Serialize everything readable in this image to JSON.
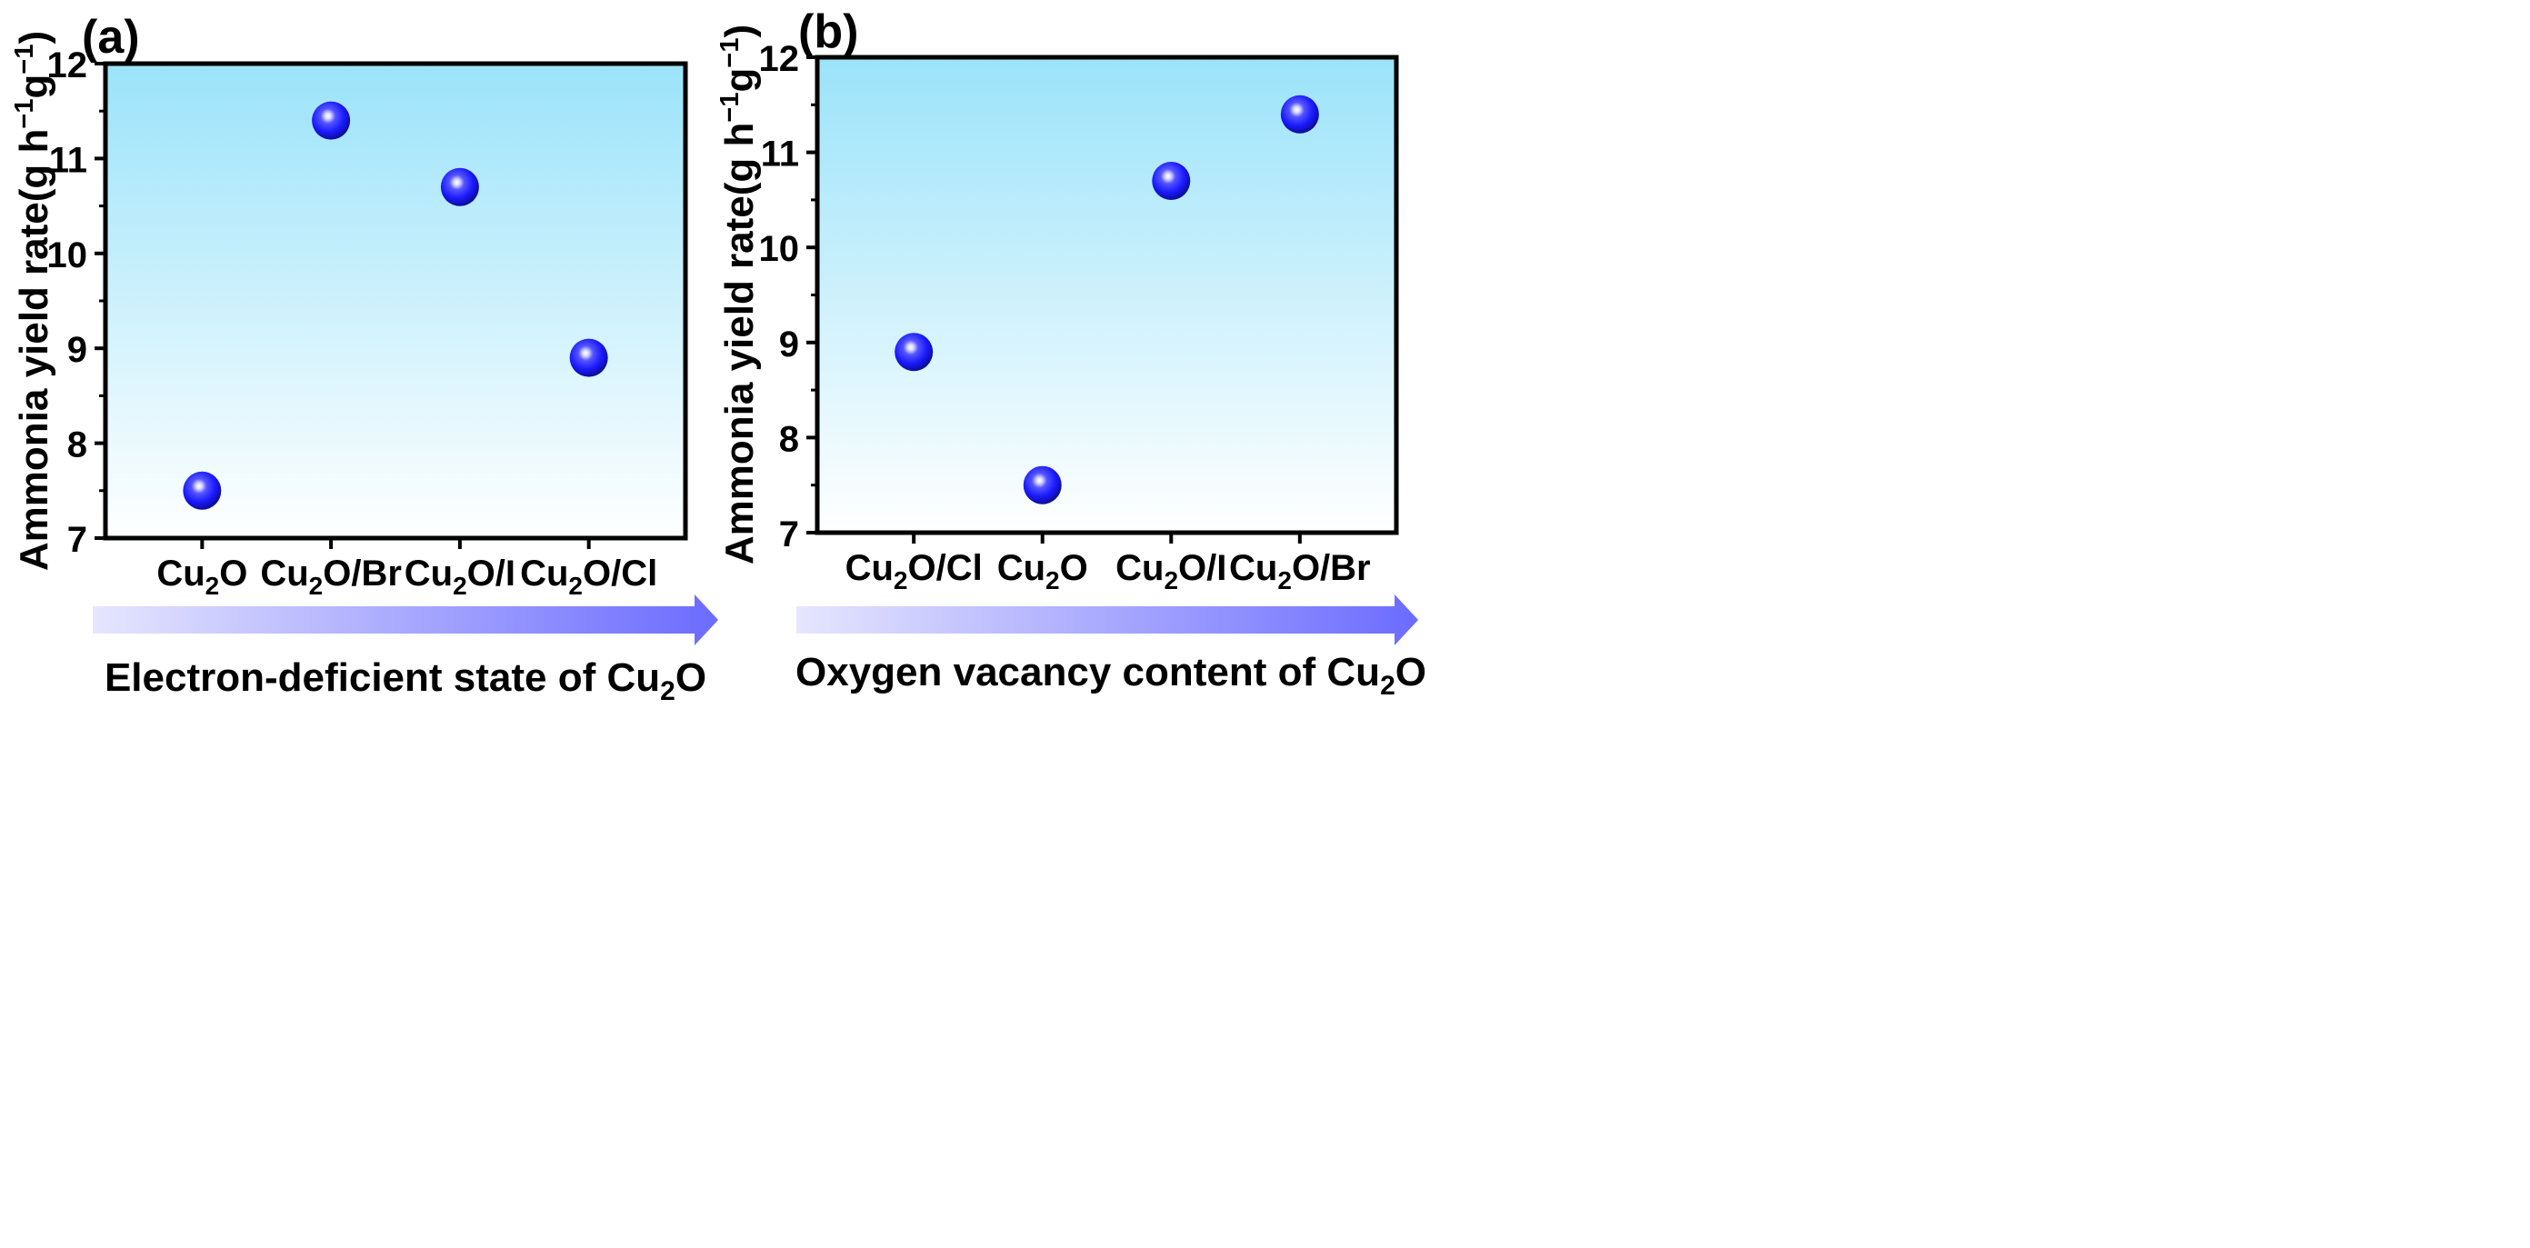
{
  "colors": {
    "background_top": "#9be3fa",
    "background_bottom": "#ffffff",
    "marker_main": "#1a1aff",
    "marker_dark": "#0a0a8a",
    "marker_highlight": "#ffffff",
    "arrow_start": "#e6e6ff",
    "arrow_end": "#6b6bff",
    "axis": "#000000"
  },
  "chart_data": [
    {
      "type": "scatter",
      "panel_label": "(a)",
      "categories": [
        {
          "base": "Cu",
          "sub": "2",
          "rest": "O"
        },
        {
          "base": "Cu",
          "sub": "2",
          "rest": "O/Br"
        },
        {
          "base": "Cu",
          "sub": "2",
          "rest": "O/I"
        },
        {
          "base": "Cu",
          "sub": "2",
          "rest": "O/Cl"
        }
      ],
      "values": [
        7.5,
        11.4,
        10.7,
        8.9
      ],
      "ylim": [
        7,
        12
      ],
      "yticks": [
        "7",
        "8",
        "9",
        "10",
        "11",
        "12"
      ],
      "ylabel": {
        "main": "Ammonia yield rate(g h",
        "sup1": "−1",
        "mid": "g",
        "sup2": "−1",
        "end": ")"
      },
      "arrow_label": {
        "main": "Electron-deficient state of Cu",
        "sub": "2",
        "end": "O"
      },
      "marker": "sphere",
      "grid": false
    },
    {
      "type": "scatter",
      "panel_label": "(b)",
      "categories": [
        {
          "base": "Cu",
          "sub": "2",
          "rest": "O/Cl"
        },
        {
          "base": "Cu",
          "sub": "2",
          "rest": "O"
        },
        {
          "base": "Cu",
          "sub": "2",
          "rest": "O/I"
        },
        {
          "base": "Cu",
          "sub": "2",
          "rest": "O/Br"
        }
      ],
      "values": [
        8.9,
        7.5,
        10.7,
        11.4
      ],
      "ylim": [
        7,
        12
      ],
      "yticks": [
        "7",
        "8",
        "9",
        "10",
        "11",
        "12"
      ],
      "ylabel": {
        "main": "Ammonia yield rate(g h",
        "sup1": "−1",
        "mid": "g",
        "sup2": "−1",
        "end": ")"
      },
      "arrow_label": {
        "main": "Oxygen vacancy content of Cu",
        "sub": "2",
        "end": "O"
      },
      "marker": "sphere",
      "grid": false
    }
  ]
}
